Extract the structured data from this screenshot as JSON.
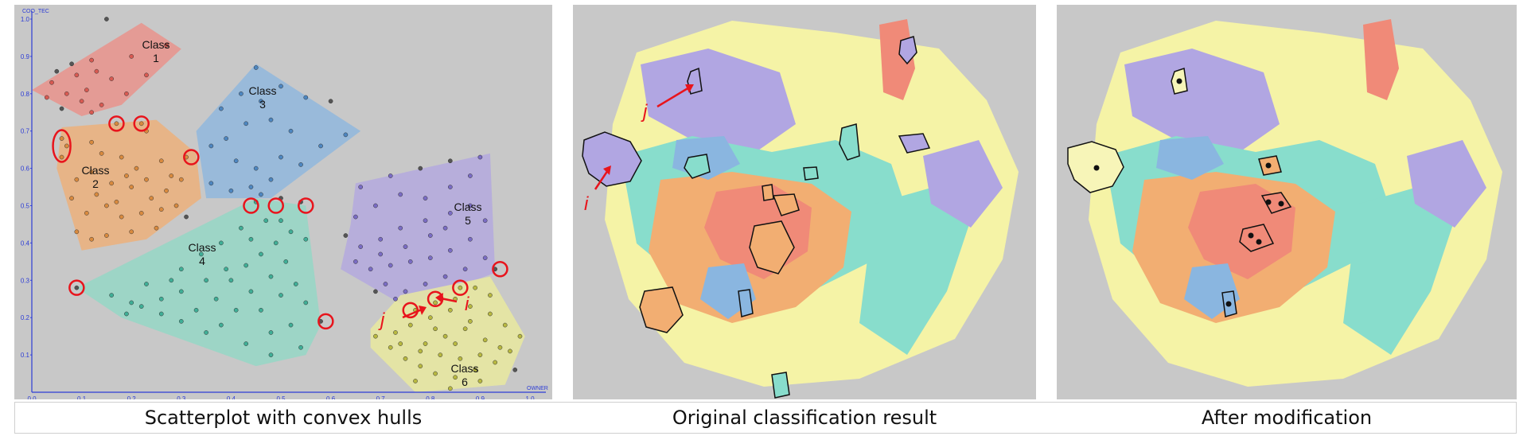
{
  "panels": {
    "scatter": {
      "caption": "Scatterplot with convex hulls",
      "y_axis_title": "COO_TEC",
      "x_axis_title": "OWNER",
      "ticks": [
        "0.0",
        "0.1",
        "0.2",
        "0.3",
        "0.4",
        "0.5",
        "0.6",
        "0.7",
        "0.8",
        "0.9",
        "1.0"
      ],
      "class_word": "Class",
      "arrow_labels": {
        "i": "i",
        "j": "j"
      }
    },
    "original": {
      "caption": "Original classification result",
      "arrow_labels": {
        "i": "i",
        "j": "j"
      }
    },
    "modified": {
      "caption": "After modification"
    }
  },
  "chart_data": {
    "type": "scatter",
    "title": "",
    "xlabel": "OWNER",
    "ylabel": "COO_TEC",
    "xlim": [
      0,
      1
    ],
    "ylim": [
      0,
      1
    ],
    "classes": [
      {
        "name": "1",
        "color": "#ee8c84",
        "hull": [
          [
            0.0,
            0.81
          ],
          [
            0.22,
            0.99
          ],
          [
            0.3,
            0.92
          ],
          [
            0.18,
            0.77
          ],
          [
            0.1,
            0.74
          ]
        ]
      },
      {
        "name": "2",
        "color": "#f2ae72",
        "hull": [
          [
            0.06,
            0.71
          ],
          [
            0.25,
            0.73
          ],
          [
            0.33,
            0.64
          ],
          [
            0.34,
            0.52
          ],
          [
            0.23,
            0.41
          ],
          [
            0.1,
            0.38
          ],
          [
            0.05,
            0.6
          ]
        ]
      },
      {
        "name": "3",
        "color": "#8ab6e0",
        "hull": [
          [
            0.45,
            0.88
          ],
          [
            0.66,
            0.7
          ],
          [
            0.48,
            0.52
          ],
          [
            0.35,
            0.52
          ],
          [
            0.33,
            0.7
          ]
        ]
      },
      {
        "name": "4",
        "color": "#8fd9c6",
        "hull": [
          [
            0.09,
            0.28
          ],
          [
            0.45,
            0.52
          ],
          [
            0.55,
            0.5
          ],
          [
            0.58,
            0.18
          ],
          [
            0.55,
            0.1
          ],
          [
            0.45,
            0.07
          ],
          [
            0.18,
            0.2
          ]
        ]
      },
      {
        "name": "5",
        "color": "#b1a6e2",
        "hull": [
          [
            0.64,
            0.45
          ],
          [
            0.65,
            0.56
          ],
          [
            0.92,
            0.64
          ],
          [
            0.93,
            0.32
          ],
          [
            0.75,
            0.23
          ],
          [
            0.62,
            0.33
          ]
        ]
      },
      {
        "name": "6",
        "color": "#eeee9a",
        "hull": [
          [
            0.68,
            0.17
          ],
          [
            0.74,
            0.26
          ],
          [
            0.92,
            0.31
          ],
          [
            0.99,
            0.15
          ],
          [
            0.95,
            0.02
          ],
          [
            0.77,
            0.0
          ],
          [
            0.68,
            0.12
          ]
        ]
      }
    ],
    "points": [
      [
        0.15,
        1.0
      ],
      [
        0.2,
        0.9
      ],
      [
        0.27,
        0.93
      ],
      [
        0.12,
        0.89
      ],
      [
        0.08,
        0.88
      ],
      [
        0.05,
        0.86
      ],
      [
        0.04,
        0.83
      ],
      [
        0.09,
        0.85
      ],
      [
        0.13,
        0.86
      ],
      [
        0.16,
        0.84
      ],
      [
        0.11,
        0.81
      ],
      [
        0.07,
        0.8
      ],
      [
        0.03,
        0.79
      ],
      [
        0.1,
        0.78
      ],
      [
        0.14,
        0.77
      ],
      [
        0.19,
        0.8
      ],
      [
        0.23,
        0.85
      ],
      [
        0.12,
        0.75
      ],
      [
        0.06,
        0.76
      ],
      [
        0.06,
        0.68
      ],
      [
        0.07,
        0.66
      ],
      [
        0.06,
        0.63
      ],
      [
        0.17,
        0.72
      ],
      [
        0.22,
        0.72
      ],
      [
        0.23,
        0.7
      ],
      [
        0.31,
        0.63
      ],
      [
        0.12,
        0.67
      ],
      [
        0.14,
        0.64
      ],
      [
        0.18,
        0.63
      ],
      [
        0.21,
        0.6
      ],
      [
        0.26,
        0.62
      ],
      [
        0.28,
        0.58
      ],
      [
        0.3,
        0.57
      ],
      [
        0.27,
        0.54
      ],
      [
        0.24,
        0.52
      ],
      [
        0.2,
        0.55
      ],
      [
        0.16,
        0.56
      ],
      [
        0.12,
        0.59
      ],
      [
        0.09,
        0.57
      ],
      [
        0.08,
        0.52
      ],
      [
        0.11,
        0.48
      ],
      [
        0.15,
        0.5
      ],
      [
        0.18,
        0.47
      ],
      [
        0.22,
        0.48
      ],
      [
        0.26,
        0.49
      ],
      [
        0.29,
        0.5
      ],
      [
        0.31,
        0.47
      ],
      [
        0.25,
        0.44
      ],
      [
        0.2,
        0.43
      ],
      [
        0.15,
        0.42
      ],
      [
        0.12,
        0.41
      ],
      [
        0.09,
        0.43
      ],
      [
        0.13,
        0.53
      ],
      [
        0.17,
        0.51
      ],
      [
        0.19,
        0.58
      ],
      [
        0.23,
        0.57
      ],
      [
        0.45,
        0.87
      ],
      [
        0.38,
        0.76
      ],
      [
        0.42,
        0.8
      ],
      [
        0.46,
        0.78
      ],
      [
        0.5,
        0.82
      ],
      [
        0.55,
        0.79
      ],
      [
        0.6,
        0.78
      ],
      [
        0.63,
        0.69
      ],
      [
        0.58,
        0.66
      ],
      [
        0.52,
        0.7
      ],
      [
        0.48,
        0.73
      ],
      [
        0.43,
        0.72
      ],
      [
        0.39,
        0.68
      ],
      [
        0.36,
        0.66
      ],
      [
        0.41,
        0.62
      ],
      [
        0.45,
        0.6
      ],
      [
        0.5,
        0.63
      ],
      [
        0.54,
        0.61
      ],
      [
        0.48,
        0.57
      ],
      [
        0.44,
        0.55
      ],
      [
        0.4,
        0.54
      ],
      [
        0.36,
        0.56
      ],
      [
        0.46,
        0.53
      ],
      [
        0.09,
        0.28
      ],
      [
        0.45,
        0.51
      ],
      [
        0.5,
        0.52
      ],
      [
        0.54,
        0.51
      ],
      [
        0.58,
        0.19
      ],
      [
        0.16,
        0.26
      ],
      [
        0.2,
        0.24
      ],
      [
        0.23,
        0.29
      ],
      [
        0.26,
        0.25
      ],
      [
        0.3,
        0.27
      ],
      [
        0.33,
        0.22
      ],
      [
        0.37,
        0.25
      ],
      [
        0.4,
        0.3
      ],
      [
        0.43,
        0.34
      ],
      [
        0.46,
        0.37
      ],
      [
        0.49,
        0.4
      ],
      [
        0.52,
        0.43
      ],
      [
        0.55,
        0.41
      ],
      [
        0.51,
        0.35
      ],
      [
        0.48,
        0.31
      ],
      [
        0.44,
        0.27
      ],
      [
        0.41,
        0.22
      ],
      [
        0.38,
        0.18
      ],
      [
        0.35,
        0.16
      ],
      [
        0.3,
        0.19
      ],
      [
        0.26,
        0.21
      ],
      [
        0.22,
        0.23
      ],
      [
        0.19,
        0.21
      ],
      [
        0.48,
        0.16
      ],
      [
        0.52,
        0.18
      ],
      [
        0.55,
        0.24
      ],
      [
        0.53,
        0.29
      ],
      [
        0.5,
        0.26
      ],
      [
        0.46,
        0.22
      ],
      [
        0.43,
        0.13
      ],
      [
        0.48,
        0.1
      ],
      [
        0.54,
        0.12
      ],
      [
        0.42,
        0.44
      ],
      [
        0.38,
        0.4
      ],
      [
        0.34,
        0.37
      ],
      [
        0.3,
        0.33
      ],
      [
        0.47,
        0.46
      ],
      [
        0.44,
        0.41
      ],
      [
        0.5,
        0.46
      ],
      [
        0.39,
        0.33
      ],
      [
        0.35,
        0.3
      ],
      [
        0.28,
        0.3
      ],
      [
        0.66,
        0.55
      ],
      [
        0.72,
        0.58
      ],
      [
        0.78,
        0.6
      ],
      [
        0.84,
        0.62
      ],
      [
        0.9,
        0.63
      ],
      [
        0.88,
        0.58
      ],
      [
        0.84,
        0.55
      ],
      [
        0.79,
        0.52
      ],
      [
        0.74,
        0.53
      ],
      [
        0.69,
        0.5
      ],
      [
        0.65,
        0.47
      ],
      [
        0.63,
        0.42
      ],
      [
        0.66,
        0.39
      ],
      [
        0.7,
        0.41
      ],
      [
        0.74,
        0.44
      ],
      [
        0.79,
        0.46
      ],
      [
        0.84,
        0.48
      ],
      [
        0.88,
        0.5
      ],
      [
        0.91,
        0.46
      ],
      [
        0.88,
        0.41
      ],
      [
        0.84,
        0.38
      ],
      [
        0.8,
        0.36
      ],
      [
        0.76,
        0.35
      ],
      [
        0.72,
        0.34
      ],
      [
        0.68,
        0.33
      ],
      [
        0.65,
        0.35
      ],
      [
        0.71,
        0.29
      ],
      [
        0.75,
        0.27
      ],
      [
        0.79,
        0.29
      ],
      [
        0.83,
        0.31
      ],
      [
        0.87,
        0.33
      ],
      [
        0.91,
        0.36
      ],
      [
        0.93,
        0.33
      ],
      [
        0.89,
        0.28
      ],
      [
        0.85,
        0.25
      ],
      [
        0.81,
        0.24
      ],
      [
        0.77,
        0.22
      ],
      [
        0.73,
        0.25
      ],
      [
        0.69,
        0.27
      ],
      [
        0.86,
        0.28
      ],
      [
        0.8,
        0.42
      ],
      [
        0.75,
        0.39
      ],
      [
        0.7,
        0.37
      ],
      [
        0.83,
        0.44
      ],
      [
        0.69,
        0.15
      ],
      [
        0.72,
        0.12
      ],
      [
        0.75,
        0.09
      ],
      [
        0.78,
        0.07
      ],
      [
        0.81,
        0.05
      ],
      [
        0.85,
        0.04
      ],
      [
        0.89,
        0.06
      ],
      [
        0.93,
        0.08
      ],
      [
        0.96,
        0.11
      ],
      [
        0.98,
        0.15
      ],
      [
        0.95,
        0.18
      ],
      [
        0.92,
        0.21
      ],
      [
        0.88,
        0.23
      ],
      [
        0.84,
        0.22
      ],
      [
        0.8,
        0.2
      ],
      [
        0.76,
        0.18
      ],
      [
        0.73,
        0.16
      ],
      [
        0.79,
        0.13
      ],
      [
        0.83,
        0.15
      ],
      [
        0.87,
        0.17
      ],
      [
        0.91,
        0.14
      ],
      [
        0.94,
        0.12
      ],
      [
        0.9,
        0.1
      ],
      [
        0.86,
        0.09
      ],
      [
        0.82,
        0.1
      ],
      [
        0.78,
        0.11
      ],
      [
        0.74,
        0.13
      ],
      [
        0.77,
        0.03
      ],
      [
        0.84,
        0.01
      ],
      [
        0.9,
        0.03
      ],
      [
        0.97,
        0.06
      ],
      [
        0.92,
        0.26
      ],
      [
        0.88,
        0.19
      ],
      [
        0.85,
        0.13
      ],
      [
        0.81,
        0.17
      ]
    ],
    "highlighted_points": [
      [
        0.06,
        0.66
      ],
      [
        0.17,
        0.72
      ],
      [
        0.22,
        0.72
      ],
      [
        0.32,
        0.63
      ],
      [
        0.44,
        0.5
      ],
      [
        0.49,
        0.5
      ],
      [
        0.55,
        0.5
      ],
      [
        0.09,
        0.28
      ],
      [
        0.59,
        0.19
      ],
      [
        0.94,
        0.33
      ],
      [
        0.86,
        0.28
      ],
      [
        0.81,
        0.25
      ],
      [
        0.76,
        0.22
      ]
    ]
  }
}
